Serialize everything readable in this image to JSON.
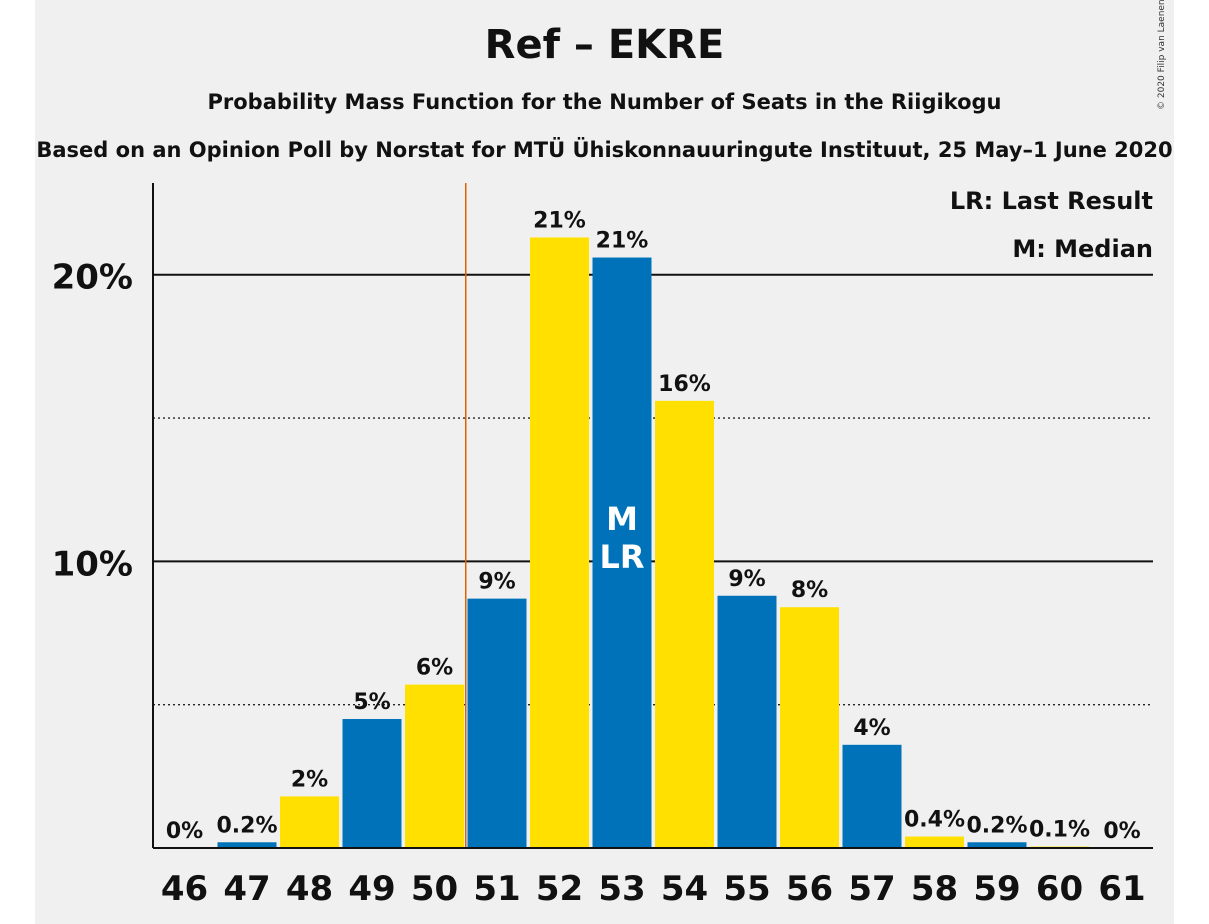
{
  "title": "Ref – EKRE",
  "subtitle": "Probability Mass Function for the Number of Seats in the Riigikogu",
  "caption": "Based on an Opinion Poll by Norstat for MTÜ Ühiskonnauuringute Instituut, 25 May–1 June 2020",
  "copyright": "© 2020 Filip van Laenen",
  "legend": {
    "last_result": "LR: Last Result",
    "median": "M: Median"
  },
  "colors": {
    "blue": "#0072b9",
    "yellow": "#ffe000",
    "last_result_line": "#e06000",
    "background": "#f0f0f0"
  },
  "chart_data": {
    "type": "bar",
    "categories": [
      "46",
      "47",
      "48",
      "49",
      "50",
      "51",
      "52",
      "53",
      "54",
      "55",
      "56",
      "57",
      "58",
      "59",
      "60",
      "61"
    ],
    "values": [
      0,
      0.2,
      1.8,
      4.5,
      5.7,
      8.7,
      21.3,
      20.6,
      15.6,
      8.8,
      8.4,
      3.6,
      0.4,
      0.2,
      0.05,
      0
    ],
    "value_labels": [
      "0%",
      "0.2%",
      "2%",
      "5%",
      "6%",
      "9%",
      "21%",
      "21%",
      "16%",
      "9%",
      "8%",
      "4%",
      "0.4%",
      "0.2%",
      "0.1%",
      "0%"
    ],
    "y_tick_labels": [
      "10%",
      "20%"
    ],
    "y_ticks": [
      10,
      20
    ],
    "minor_gridlines": [
      5,
      15
    ],
    "ylim": [
      0,
      23.2
    ],
    "last_result_seats": 50.5,
    "median_seat": "53",
    "median_marker": "M",
    "last_result_marker": "LR",
    "grid": true,
    "legend_position": "top-right"
  }
}
